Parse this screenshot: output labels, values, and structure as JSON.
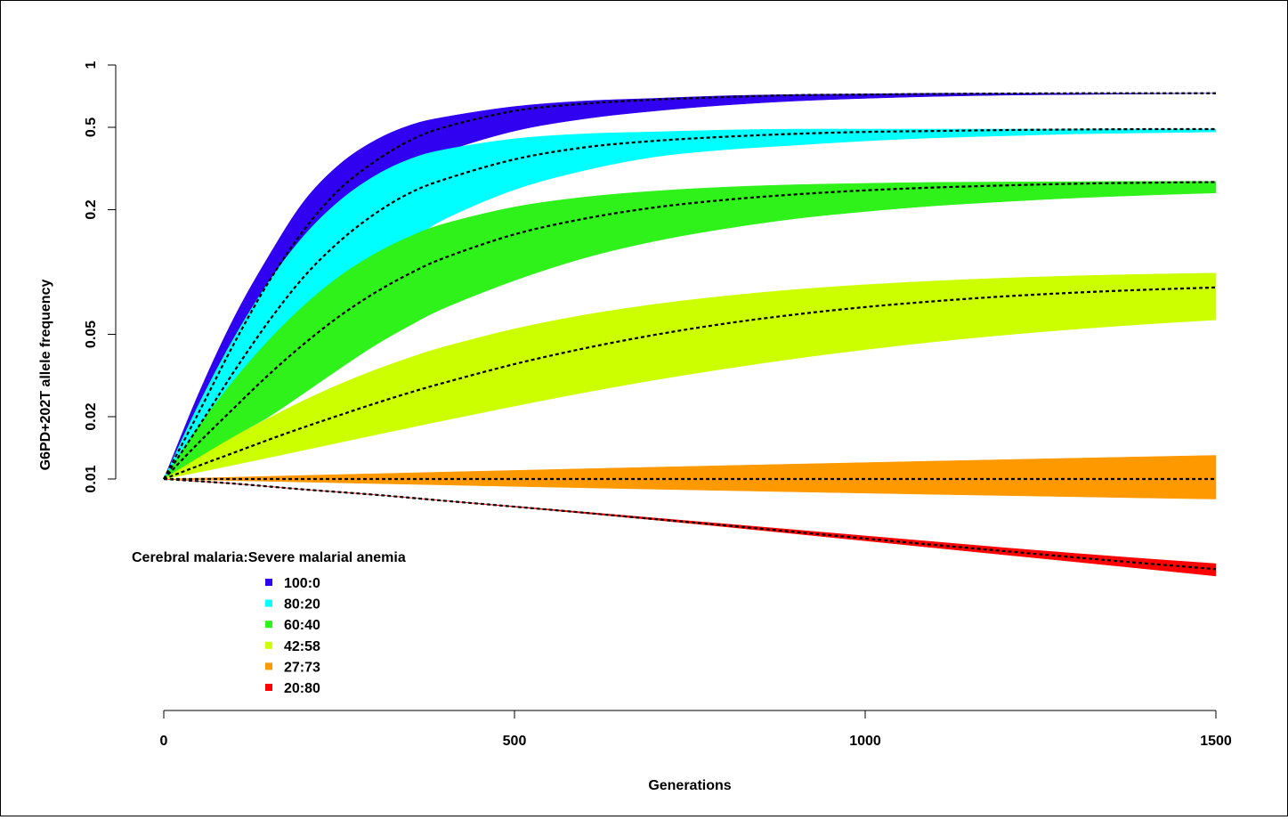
{
  "chart_data": {
    "type": "area",
    "xlabel": "Generations",
    "ylabel": "G6PD+202T allele frequency",
    "x_scale": "linear",
    "y_scale": "log",
    "xlim": [
      0,
      1500
    ],
    "ylim": [
      0.003,
      1
    ],
    "x_ticks": [
      0,
      500,
      1000,
      1500
    ],
    "x_tick_labels": [
      "0",
      "500",
      "1000",
      "1500"
    ],
    "y_ticks": [
      0.01,
      0.02,
      0.05,
      0.2,
      0.5,
      1
    ],
    "y_tick_labels": [
      "0.01",
      "0.02",
      "0.05",
      "0.2",
      "0.5",
      "1"
    ],
    "legend": {
      "title": "Cerebral malaria:Severe malarial anemia",
      "placement": "bottom-left"
    },
    "series": [
      {
        "name": "100:0",
        "color": "#3000f0",
        "x": [
          0,
          50,
          100,
          150,
          200,
          250,
          300,
          350,
          400,
          500,
          600,
          700,
          800,
          900,
          1000,
          1100,
          1200,
          1300,
          1400,
          1500
        ],
        "mean": [
          0.01,
          0.021,
          0.045,
          0.09,
          0.16,
          0.25,
          0.34,
          0.43,
          0.5,
          0.6,
          0.65,
          0.68,
          0.7,
          0.715,
          0.72,
          0.725,
          0.728,
          0.73,
          0.73,
          0.73
        ],
        "lower": [
          0.01,
          0.016,
          0.03,
          0.055,
          0.1,
          0.16,
          0.24,
          0.31,
          0.38,
          0.48,
          0.55,
          0.6,
          0.64,
          0.67,
          0.69,
          0.705,
          0.715,
          0.72,
          0.725,
          0.73
        ],
        "upper": [
          0.01,
          0.026,
          0.06,
          0.12,
          0.22,
          0.33,
          0.43,
          0.51,
          0.56,
          0.63,
          0.67,
          0.69,
          0.71,
          0.72,
          0.725,
          0.73,
          0.73,
          0.73,
          0.73,
          0.73
        ]
      },
      {
        "name": "80:20",
        "color": "#00ffff",
        "x": [
          0,
          50,
          100,
          150,
          200,
          250,
          300,
          350,
          400,
          500,
          600,
          700,
          800,
          900,
          1000,
          1100,
          1200,
          1300,
          1400,
          1500
        ],
        "mean": [
          0.01,
          0.018,
          0.033,
          0.058,
          0.095,
          0.14,
          0.19,
          0.24,
          0.28,
          0.35,
          0.4,
          0.43,
          0.45,
          0.465,
          0.475,
          0.48,
          0.485,
          0.488,
          0.49,
          0.49
        ],
        "lower": [
          0.01,
          0.014,
          0.022,
          0.036,
          0.055,
          0.08,
          0.11,
          0.14,
          0.18,
          0.25,
          0.31,
          0.36,
          0.39,
          0.41,
          0.43,
          0.445,
          0.455,
          0.465,
          0.47,
          0.475
        ],
        "upper": [
          0.01,
          0.023,
          0.048,
          0.09,
          0.15,
          0.22,
          0.29,
          0.35,
          0.39,
          0.44,
          0.465,
          0.475,
          0.485,
          0.49,
          0.49,
          0.49,
          0.49,
          0.49,
          0.49,
          0.49
        ]
      },
      {
        "name": "60:40",
        "color": "#2ef21a",
        "x": [
          0,
          50,
          100,
          150,
          200,
          250,
          300,
          350,
          400,
          500,
          600,
          700,
          800,
          900,
          1000,
          1100,
          1200,
          1300,
          1400,
          1500
        ],
        "mean": [
          0.01,
          0.015,
          0.022,
          0.032,
          0.045,
          0.061,
          0.079,
          0.098,
          0.117,
          0.152,
          0.181,
          0.205,
          0.223,
          0.237,
          0.248,
          0.256,
          0.262,
          0.267,
          0.27,
          0.272
        ],
        "lower": [
          0.01,
          0.012,
          0.016,
          0.02,
          0.026,
          0.034,
          0.044,
          0.055,
          0.067,
          0.091,
          0.117,
          0.141,
          0.162,
          0.181,
          0.196,
          0.209,
          0.219,
          0.228,
          0.235,
          0.241
        ],
        "upper": [
          0.01,
          0.018,
          0.03,
          0.047,
          0.069,
          0.095,
          0.122,
          0.148,
          0.171,
          0.206,
          0.23,
          0.246,
          0.257,
          0.264,
          0.268,
          0.271,
          0.272,
          0.273,
          0.274,
          0.274
        ]
      },
      {
        "name": "42:58",
        "color": "#ccff00",
        "x": [
          0,
          50,
          100,
          150,
          200,
          250,
          300,
          350,
          400,
          500,
          600,
          700,
          800,
          900,
          1000,
          1100,
          1200,
          1300,
          1400,
          1500
        ],
        "mean": [
          0.01,
          0.0116,
          0.0134,
          0.0155,
          0.0178,
          0.0203,
          0.0231,
          0.0261,
          0.0292,
          0.0359,
          0.0428,
          0.0497,
          0.0563,
          0.0623,
          0.0677,
          0.0723,
          0.0763,
          0.0795,
          0.0821,
          0.0842
        ],
        "lower": [
          0.01,
          0.0108,
          0.0117,
          0.0127,
          0.0138,
          0.015,
          0.0163,
          0.0177,
          0.0192,
          0.0225,
          0.0262,
          0.0301,
          0.0341,
          0.0382,
          0.0422,
          0.0461,
          0.0497,
          0.053,
          0.056,
          0.0587
        ],
        "upper": [
          0.01,
          0.0127,
          0.016,
          0.0197,
          0.024,
          0.0286,
          0.0335,
          0.0385,
          0.0435,
          0.0531,
          0.062,
          0.0698,
          0.0765,
          0.0822,
          0.0868,
          0.0905,
          0.0935,
          0.0958,
          0.0975,
          0.0988
        ]
      },
      {
        "name": "27:73",
        "color": "#ff9900",
        "x": [
          0,
          100,
          200,
          300,
          400,
          500,
          600,
          700,
          800,
          900,
          1000,
          1100,
          1200,
          1300,
          1400,
          1500
        ],
        "mean": [
          0.01,
          0.01,
          0.01,
          0.01,
          0.01,
          0.01,
          0.01,
          0.01,
          0.01,
          0.01,
          0.01,
          0.01,
          0.01,
          0.01,
          0.01,
          0.01
        ],
        "lower": [
          0.01,
          0.00983,
          0.00967,
          0.00951,
          0.00936,
          0.00921,
          0.00907,
          0.00893,
          0.0088,
          0.00867,
          0.00855,
          0.00843,
          0.00832,
          0.00821,
          0.0081,
          0.008
        ],
        "upper": [
          0.01,
          0.0102,
          0.0104,
          0.0106,
          0.0108,
          0.011,
          0.0112,
          0.0114,
          0.0116,
          0.0118,
          0.012,
          0.0122,
          0.0124,
          0.0126,
          0.0128,
          0.013
        ]
      },
      {
        "name": "20:80",
        "color": "#ff0000",
        "x": [
          0,
          100,
          200,
          300,
          400,
          500,
          600,
          700,
          800,
          900,
          1000,
          1100,
          1200,
          1300,
          1400,
          1500
        ],
        "mean": [
          0.01,
          0.0095,
          0.0089,
          0.0084,
          0.00785,
          0.00735,
          0.00687,
          0.0064,
          0.00597,
          0.00555,
          0.00516,
          0.0048,
          0.00448,
          0.00418,
          0.00391,
          0.00367
        ],
        "lower": [
          0.01,
          0.0095,
          0.0089,
          0.0084,
          0.00784,
          0.00733,
          0.00682,
          0.00634,
          0.00588,
          0.00544,
          0.00503,
          0.00465,
          0.0043,
          0.00398,
          0.00368,
          0.0034
        ],
        "upper": [
          0.01,
          0.0095,
          0.0089,
          0.0084,
          0.00786,
          0.00738,
          0.00692,
          0.00648,
          0.00607,
          0.00568,
          0.00531,
          0.00497,
          0.00465,
          0.00437,
          0.00412,
          0.0039
        ]
      }
    ]
  }
}
